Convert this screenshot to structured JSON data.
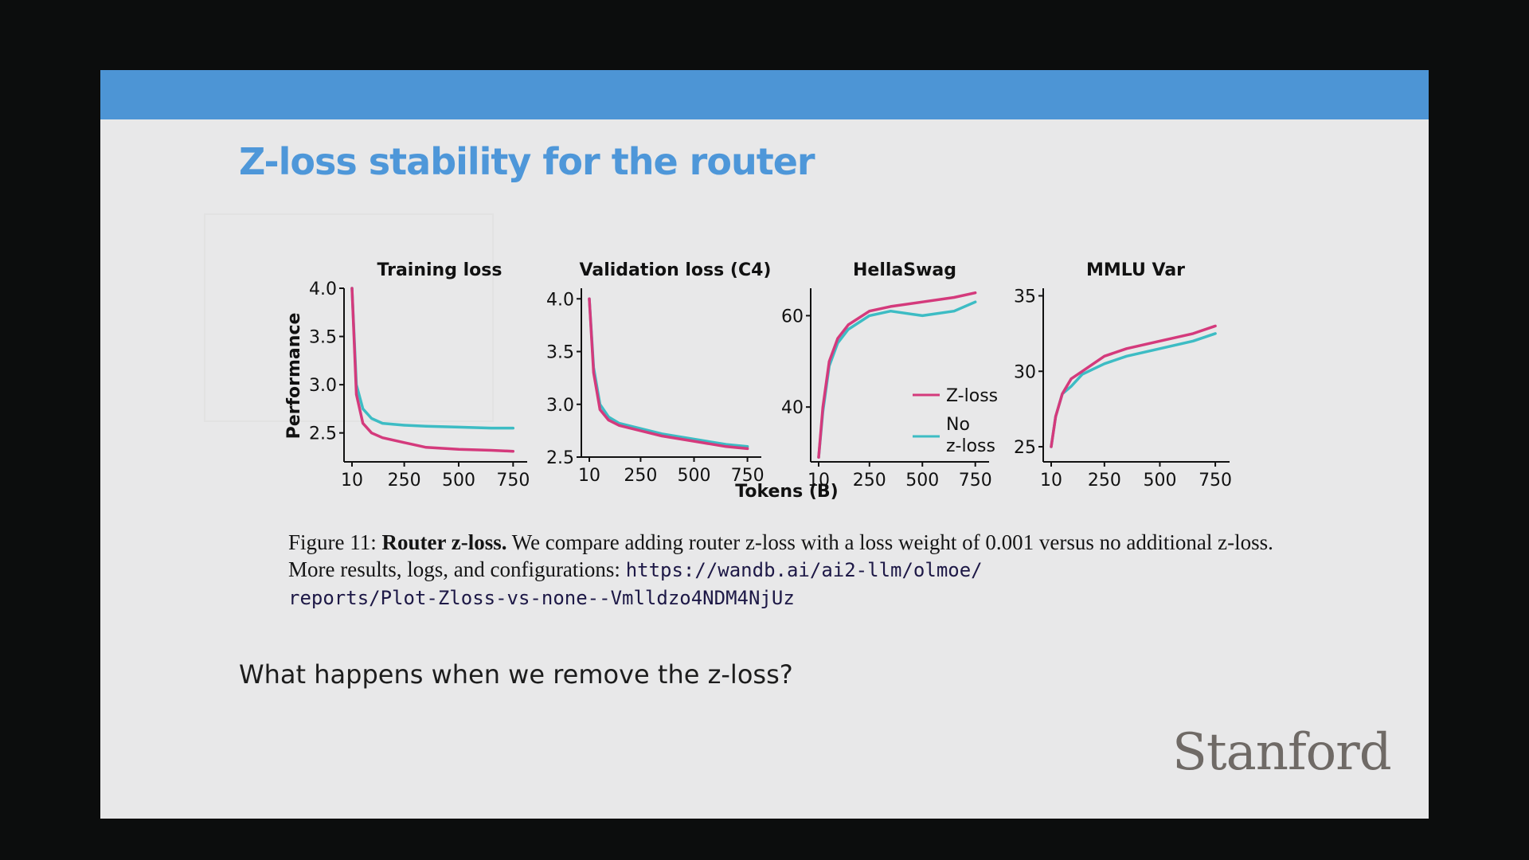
{
  "slide": {
    "title": "Z-loss stability for the router",
    "question": "What happens when we remove the z-loss?",
    "logo_text": "Stanford",
    "accent_color": "#4d95d5",
    "title_color": "#4e97d9"
  },
  "caption": {
    "figure_label": "Figure 11:",
    "bold_title": "Router z-loss.",
    "text": "We compare adding router z-loss with a loss weight of 0.001 versus no additional z-loss. More results, logs, and configurations:",
    "url_line1": "https://wandb.ai/ai2-llm/olmoe/",
    "url_line2": "reports/Plot-Zloss-vs-none--Vmlldzo4NDM4NjUz"
  },
  "chart_data": {
    "type": "line",
    "shared_xlabel": "Tokens (B)",
    "shared_ylabel": "Performance",
    "legend": {
      "placement": "lower-right of HellaSwag panel",
      "entries": [
        {
          "label": "Z-loss",
          "color": "#d43a7c"
        },
        {
          "label": "No z-loss",
          "color": "#3dbcc4"
        }
      ]
    },
    "panels": [
      {
        "title": "Training loss",
        "xticks": [
          "10",
          "250",
          "500",
          "750"
        ],
        "xlim": [
          10,
          800
        ],
        "yticks": [
          "4.0",
          "3.5",
          "3.0",
          "2.5"
        ],
        "ylim": [
          2.2,
          4.0
        ],
        "series": [
          {
            "name": "Z-loss",
            "color": "#d43a7c",
            "x": [
              10,
              30,
              60,
              100,
              150,
              250,
              350,
              500,
              650,
              750
            ],
            "y": [
              4.0,
              2.9,
              2.6,
              2.5,
              2.45,
              2.4,
              2.35,
              2.33,
              2.32,
              2.31
            ]
          },
          {
            "name": "No z-loss",
            "color": "#3dbcc4",
            "x": [
              10,
              30,
              60,
              100,
              150,
              250,
              350,
              500,
              650,
              750
            ],
            "y": [
              4.0,
              3.0,
              2.75,
              2.65,
              2.6,
              2.58,
              2.57,
              2.56,
              2.55,
              2.55
            ]
          }
        ]
      },
      {
        "title": "Validation loss (C4)",
        "xticks": [
          "10",
          "250",
          "500",
          "750"
        ],
        "xlim": [
          10,
          800
        ],
        "yticks": [
          "4.0",
          "3.5",
          "3.0",
          "2.5"
        ],
        "ylim": [
          2.5,
          4.1
        ],
        "series": [
          {
            "name": "Z-loss",
            "color": "#d43a7c",
            "x": [
              10,
              30,
              60,
              100,
              150,
              250,
              350,
              500,
              650,
              750
            ],
            "y": [
              4.0,
              3.3,
              2.95,
              2.85,
              2.8,
              2.75,
              2.7,
              2.65,
              2.6,
              2.58
            ]
          },
          {
            "name": "No z-loss",
            "color": "#3dbcc4",
            "x": [
              10,
              30,
              60,
              100,
              150,
              250,
              350,
              500,
              650,
              750
            ],
            "y": [
              4.0,
              3.35,
              3.0,
              2.88,
              2.82,
              2.77,
              2.72,
              2.67,
              2.62,
              2.6
            ]
          }
        ]
      },
      {
        "title": "HellaSwag",
        "xticks": [
          "10",
          "250",
          "500",
          "750"
        ],
        "xlim": [
          10,
          800
        ],
        "yticks": [
          "60",
          "40"
        ],
        "ylim": [
          28,
          66
        ],
        "series": [
          {
            "name": "Z-loss",
            "color": "#d43a7c",
            "x": [
              10,
              30,
              60,
              100,
              150,
              250,
              350,
              500,
              650,
              750
            ],
            "y": [
              29,
              40,
              50,
              55,
              58,
              61,
              62,
              63,
              64,
              65
            ]
          },
          {
            "name": "No z-loss",
            "color": "#3dbcc4",
            "x": [
              10,
              30,
              60,
              100,
              150,
              250,
              350,
              500,
              650,
              750
            ],
            "y": [
              29,
              39,
              49,
              54,
              57,
              60,
              61,
              60,
              61,
              63
            ]
          }
        ]
      },
      {
        "title": "MMLU Var",
        "xticks": [
          "10",
          "250",
          "500",
          "750"
        ],
        "xlim": [
          10,
          800
        ],
        "yticks": [
          "35",
          "30",
          "25"
        ],
        "ylim": [
          24,
          35.5
        ],
        "series": [
          {
            "name": "Z-loss",
            "color": "#d43a7c",
            "x": [
              10,
              30,
              60,
              100,
              150,
              250,
              350,
              500,
              650,
              750
            ],
            "y": [
              25,
              27,
              28.5,
              29.5,
              30,
              31,
              31.5,
              32,
              32.5,
              33
            ]
          },
          {
            "name": "No z-loss",
            "color": "#3dbcc4",
            "x": [
              10,
              30,
              60,
              100,
              150,
              250,
              350,
              500,
              650,
              750
            ],
            "y": [
              25,
              27,
              28.5,
              29,
              29.8,
              30.5,
              31,
              31.5,
              32,
              32.5
            ]
          }
        ]
      }
    ]
  }
}
